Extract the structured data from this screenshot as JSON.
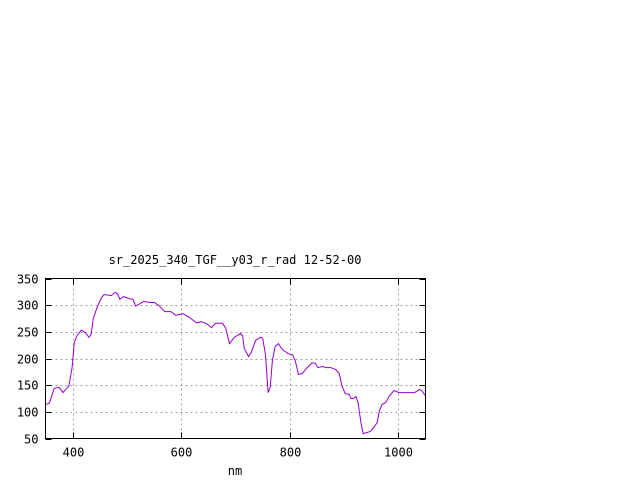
{
  "chart_data": {
    "type": "line",
    "title": "sr_2025_340_TGF__y03_r_rad 12-52-00",
    "xlabel": "nm",
    "ylabel": "",
    "xlim": [
      350,
      1050
    ],
    "ylim": [
      50,
      350
    ],
    "xticks": [
      400,
      600,
      800,
      1000
    ],
    "yticks": [
      50,
      100,
      150,
      200,
      250,
      300,
      350
    ],
    "grid": true,
    "line_color": "#9400d3",
    "x": [
      350,
      357,
      366,
      375,
      382,
      393,
      399,
      403,
      408,
      416,
      423,
      430,
      434,
      438,
      445,
      452,
      458,
      471,
      478,
      482,
      487,
      494,
      505,
      511,
      516,
      531,
      542,
      551,
      560,
      570,
      581,
      590,
      603,
      615,
      628,
      637,
      647,
      656,
      663,
      676,
      682,
      689,
      698,
      709,
      713,
      716,
      724,
      729,
      737,
      746,
      750,
      755,
      760,
      764,
      768,
      773,
      779,
      786,
      797,
      805,
      810,
      816,
      823,
      832,
      841,
      847,
      852,
      860,
      867,
      876,
      885,
      891,
      896,
      902,
      909,
      913,
      917,
      922,
      926,
      931,
      935,
      941,
      948,
      955,
      961,
      965,
      970,
      977,
      983,
      992,
      1001,
      1010,
      1019,
      1030,
      1039,
      1043,
      1049
    ],
    "y": [
      114,
      116,
      144,
      146,
      136,
      148,
      183,
      230,
      243,
      253,
      249,
      240,
      245,
      275,
      296,
      312,
      320,
      318,
      324,
      322,
      311,
      316,
      312,
      311,
      298,
      307,
      305,
      305,
      298,
      288,
      288,
      281,
      284,
      277,
      267,
      269,
      265,
      258,
      266,
      266,
      257,
      228,
      240,
      247,
      243,
      219,
      204,
      211,
      234,
      240,
      238,
      209,
      136,
      146,
      196,
      222,
      228,
      217,
      209,
      207,
      196,
      170,
      172,
      183,
      192,
      191,
      183,
      185,
      183,
      183,
      179,
      172,
      149,
      134,
      133,
      125,
      125,
      129,
      116,
      80,
      59,
      61,
      63,
      71,
      80,
      102,
      114,
      118,
      129,
      140,
      136,
      136,
      136,
      136,
      142,
      140,
      131
    ]
  }
}
